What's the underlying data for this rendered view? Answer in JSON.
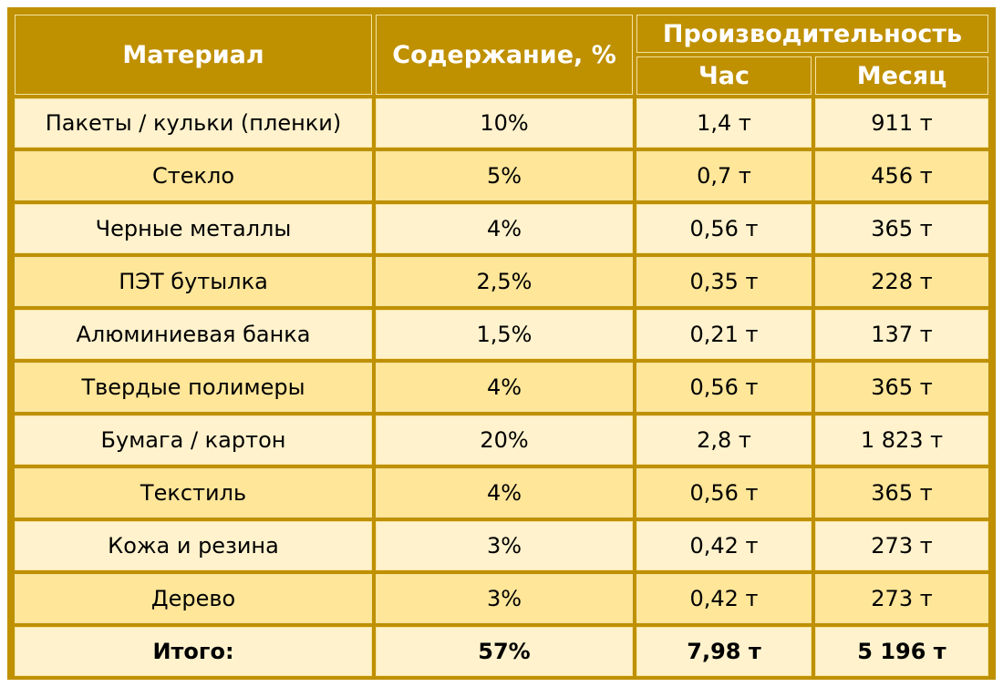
{
  "table": {
    "header": {
      "material": "Материал",
      "content": "Содержание, %",
      "productivity": "Производительность",
      "hour": "Час",
      "month": "Месяц"
    },
    "rows": [
      {
        "material": "Пакеты / кульки (пленки)",
        "content": "10%",
        "hour": "1,4 т",
        "month": "911 т"
      },
      {
        "material": "Стекло",
        "content": "5%",
        "hour": "0,7 т",
        "month": "456 т"
      },
      {
        "material": "Черные металлы",
        "content": "4%",
        "hour": "0,56 т",
        "month": "365 т"
      },
      {
        "material": "ПЭТ бутылка",
        "content": "2,5%",
        "hour": "0,35 т",
        "month": "228 т"
      },
      {
        "material": "Алюминиевая банка",
        "content": "1,5%",
        "hour": "0,21 т",
        "month": "137 т"
      },
      {
        "material": "Твердые полимеры",
        "content": "4%",
        "hour": "0,56 т",
        "month": "365 т"
      },
      {
        "material": "Бумага / картон",
        "content": "20%",
        "hour": "2,8 т",
        "month": "1 823 т"
      },
      {
        "material": "Текстиль",
        "content": "4%",
        "hour": "0,56 т",
        "month": "365 т"
      },
      {
        "material": "Кожа и резина",
        "content": "3%",
        "hour": "0,42 т",
        "month": "273 т"
      },
      {
        "material": "Дерево",
        "content": "3%",
        "hour": "0,42 т",
        "month": "273 т"
      }
    ],
    "total": {
      "material": "Итого:",
      "content": "57%",
      "hour": "7,98 т",
      "month": "5 196 т"
    }
  },
  "colors": {
    "header_bg": "#bf9000",
    "row_light": "#fff2cc",
    "row_dark": "#ffe699",
    "cell_border": "#f4e3a0"
  }
}
